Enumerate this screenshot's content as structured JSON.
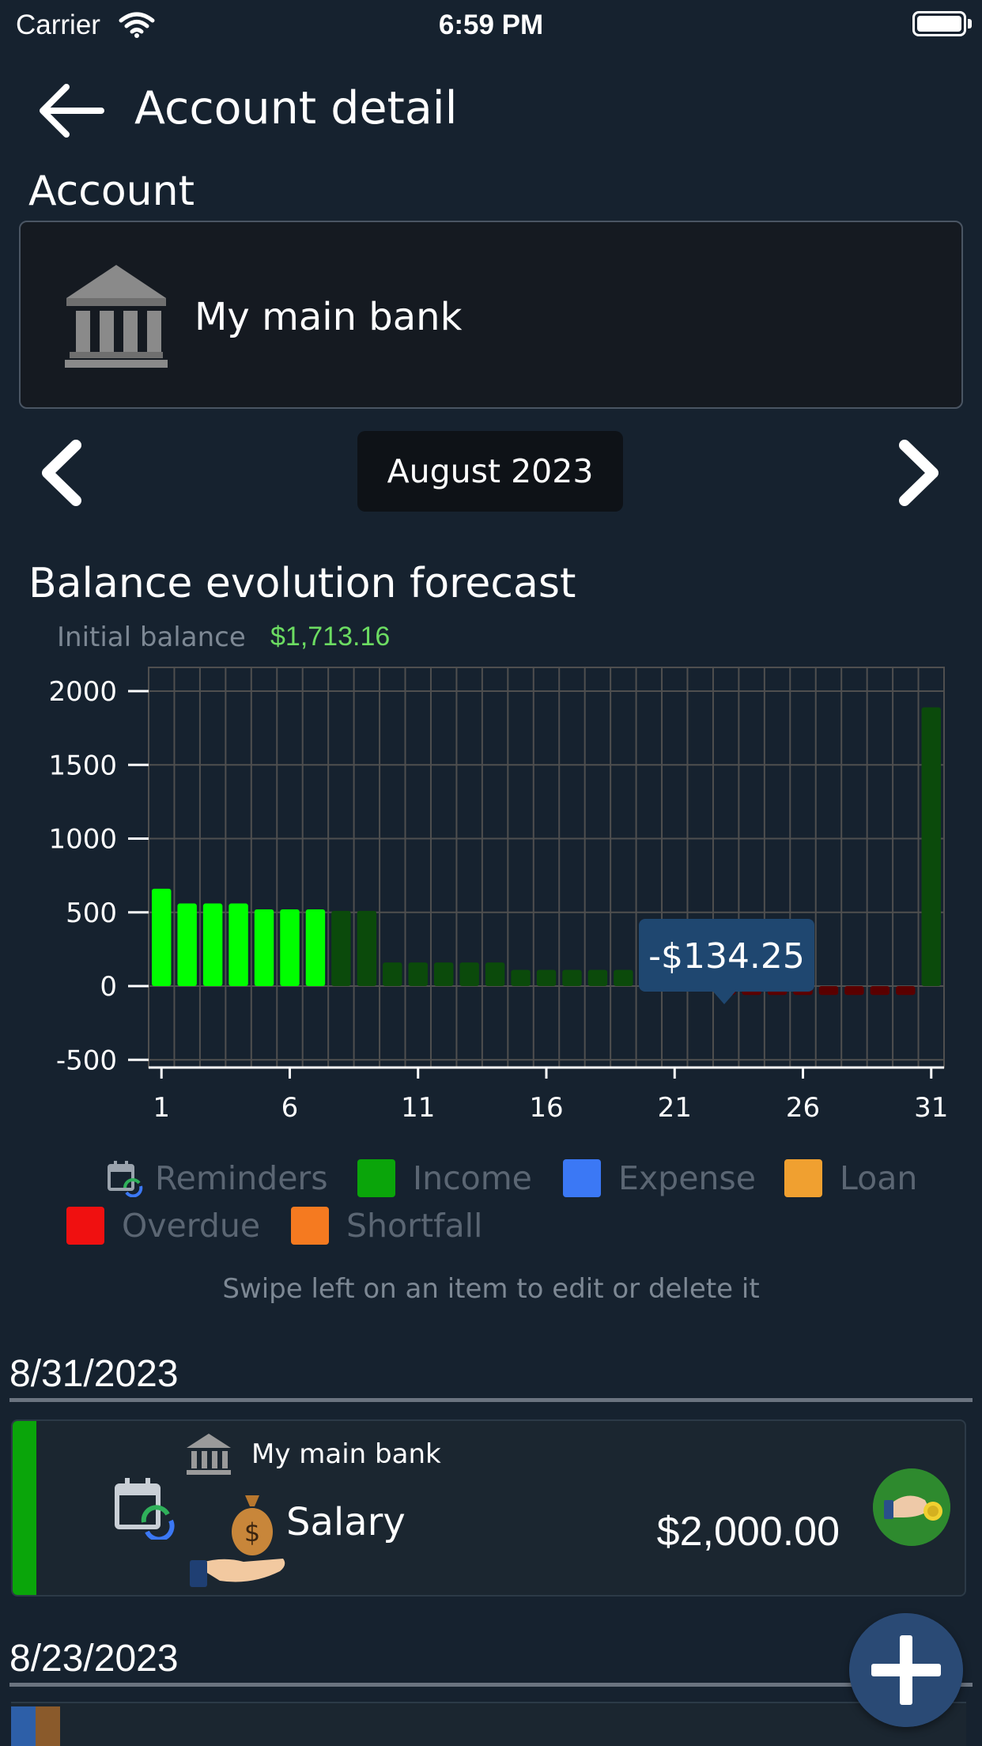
{
  "status_bar": {
    "carrier": "Carrier",
    "time": "6:59 PM"
  },
  "header": {
    "title": "Account detail"
  },
  "account_section": {
    "label": "Account",
    "account_name": "My main bank"
  },
  "month_nav": {
    "current_month": "August 2023"
  },
  "chart_section": {
    "title": "Balance evolution forecast",
    "initial_balance_label": "Initial balance",
    "initial_balance_value": "$1,713.16",
    "tooltip": "-$134.25"
  },
  "chart_data": {
    "type": "bar",
    "x": [
      1,
      2,
      3,
      4,
      5,
      6,
      7,
      8,
      9,
      10,
      11,
      12,
      13,
      14,
      15,
      16,
      17,
      18,
      19,
      20,
      21,
      22,
      23,
      24,
      25,
      26,
      27,
      28,
      29,
      30,
      31
    ],
    "values": [
      660,
      560,
      560,
      560,
      520,
      520,
      520,
      510,
      510,
      160,
      160,
      160,
      160,
      160,
      110,
      110,
      110,
      110,
      110,
      0,
      0,
      0,
      -60,
      -60,
      -60,
      -60,
      -60,
      -60,
      -60,
      -60,
      1890
    ],
    "ylim": [
      -500,
      2000
    ],
    "yticks": [
      "2000",
      "1500",
      "1000",
      "500",
      "0",
      "-500"
    ],
    "xticks": [
      "1",
      "6",
      "11",
      "16",
      "21",
      "26",
      "31"
    ],
    "colors": {
      "past_positive": "#00ff00",
      "future_positive": "#0b4a0b",
      "future_negative": "#5a0000",
      "grid": "#4f4f4f",
      "tooltip_bg": "#1f4770"
    },
    "highlight_index": 6
  },
  "legend": {
    "items": [
      {
        "label": "Reminders"
      },
      {
        "label": "Income",
        "color": "#0aa50a"
      },
      {
        "label": "Expense",
        "color": "#3b78f5"
      },
      {
        "label": "Loan",
        "color": "#f0a030"
      },
      {
        "label": "Overdue",
        "color": "#f01010"
      },
      {
        "label": "Shortfall",
        "color": "#f57a20"
      }
    ]
  },
  "hint": "Swipe left on an item to edit or delete it",
  "transactions": {
    "groups": [
      {
        "date": "8/31/2023",
        "items": [
          {
            "account": "My main bank",
            "name": "Salary",
            "amount": "$2,000.00"
          }
        ]
      },
      {
        "date": "8/23/2023"
      }
    ]
  },
  "icons": {
    "back": "arrow-left-icon",
    "bank": "bank-icon",
    "prev": "chevron-left-icon",
    "next": "chevron-right-icon",
    "reminder": "calendar-refresh-icon",
    "salary": "money-bag-hand-icon",
    "pay": "hand-coin-icon",
    "add": "plus-icon"
  }
}
